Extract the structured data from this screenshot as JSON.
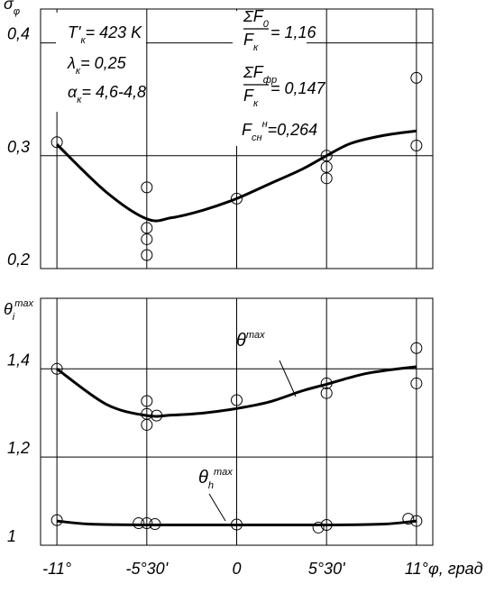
{
  "chart_data": [
    {
      "type": "line",
      "y_label": {
        "parts": [
          {
            "text": "σ"
          },
          {
            "text": "φ",
            "pos": "sub"
          }
        ]
      },
      "xlim": [
        -12,
        12
      ],
      "ylim": [
        0.2,
        0.43
      ],
      "yticks": [
        {
          "value": 0.2,
          "label": "0,2"
        },
        {
          "value": 0.3,
          "label": "0,3"
        },
        {
          "value": 0.4,
          "label": "0,4"
        }
      ],
      "grid": true,
      "series": [
        {
          "style": "line",
          "color": "#000000",
          "x": [
            -11,
            -8,
            -5.5,
            -4,
            -2,
            0,
            2,
            4,
            5.5,
            7,
            9,
            11
          ],
          "values": [
            0.31,
            0.268,
            0.244,
            0.245,
            0.252,
            0.262,
            0.275,
            0.288,
            0.3,
            0.311,
            0.318,
            0.322
          ]
        },
        {
          "style": "markers",
          "color": "#000000",
          "x": [
            -11,
            -5.5,
            -5.5,
            -5.5,
            -5.5,
            0,
            5.5,
            5.5,
            5.5,
            11,
            11
          ],
          "values": [
            0.312,
            0.272,
            0.236,
            0.226,
            0.212,
            0.262,
            0.3,
            0.29,
            0.28,
            0.369,
            0.309
          ]
        }
      ],
      "annotations": [
        {
          "parts": [
            {
              "text": "T'"
            },
            {
              "text": "к",
              "pos": "sub"
            },
            {
              "text": "= 423 K"
            }
          ]
        },
        {
          "parts": [
            {
              "text": "λ"
            },
            {
              "text": "к",
              "pos": "sub"
            },
            {
              "text": "= 0,25"
            }
          ]
        },
        {
          "parts": [
            {
              "text": "α"
            },
            {
              "text": "к",
              "pos": "sub"
            },
            {
              "text": "= 4,6-4,8"
            }
          ]
        },
        {
          "numerator": [
            {
              "text": "ΣF"
            },
            {
              "text": "0",
              "pos": "sub"
            }
          ],
          "denominator": [
            {
              "text": "F"
            },
            {
              "text": "к",
              "pos": "sub"
            }
          ],
          "rest": [
            {
              "text": "= 1,16"
            }
          ]
        },
        {
          "numerator": [
            {
              "text": "ΣF"
            },
            {
              "text": "фр",
              "pos": "sub"
            }
          ],
          "denominator": [
            {
              "text": "F"
            },
            {
              "text": "к",
              "pos": "sub"
            }
          ],
          "rest": [
            {
              "text": "= 0,147"
            }
          ]
        },
        {
          "parts": [
            {
              "text": "F"
            },
            {
              "text": "сн",
              "pos": "sub"
            },
            {
              "text": "н",
              "pos": "sup"
            },
            {
              "text": "=0,264"
            }
          ]
        }
      ]
    },
    {
      "type": "line",
      "y_label": {
        "parts": [
          {
            "text": "θ"
          },
          {
            "text": "i",
            "pos": "sub"
          },
          {
            "text": "max",
            "pos": "sup"
          }
        ]
      },
      "xlim": [
        -12,
        12
      ],
      "ylim": [
        1,
        1.56
      ],
      "xticks": [
        {
          "value": -11,
          "label": "-11°"
        },
        {
          "value": -5.5,
          "label": "-5°30'"
        },
        0,
        {
          "value": 5.5,
          "label": "5°30'"
        },
        {
          "value": 11,
          "label": "11°"
        }
      ],
      "x_label": "φ, град",
      "yticks": [
        1,
        {
          "value": 1.2,
          "label": "1,2"
        },
        {
          "value": 1.4,
          "label": "1,4"
        }
      ],
      "grid": true,
      "series": [
        {
          "style": "line",
          "color": "#000000",
          "label": {
            "parts": [
              {
                "text": "θ"
              },
              {
                "text": "max",
                "pos": "sup"
              }
            ]
          },
          "x": [
            -11,
            -8,
            -5.5,
            -4,
            -2,
            0,
            2,
            4,
            5.5,
            8,
            11
          ],
          "values": [
            1.4,
            1.32,
            1.294,
            1.295,
            1.3,
            1.31,
            1.325,
            1.35,
            1.365,
            1.39,
            1.405
          ]
        },
        {
          "style": "markers",
          "color": "#000000",
          "x": [
            -11,
            -5.5,
            -5.5,
            -5.5,
            -4.9,
            0,
            5.5,
            5.5,
            11,
            11
          ],
          "values": [
            1.4,
            1.327,
            1.298,
            1.273,
            1.294,
            1.329,
            1.367,
            1.345,
            1.447,
            1.367
          ]
        },
        {
          "style": "line",
          "color": "#000000",
          "label": {
            "parts": [
              {
                "text": "θ"
              },
              {
                "text": "h",
                "pos": "sub"
              },
              {
                "text": "max",
                "pos": "sup"
              }
            ]
          },
          "x": [
            -11,
            -9,
            -5.5,
            0,
            5.5,
            9,
            11
          ],
          "values": [
            1.055,
            1.048,
            1.046,
            1.046,
            1.046,
            1.048,
            1.055
          ]
        },
        {
          "style": "markers",
          "color": "#000000",
          "x": [
            -11,
            -6,
            -5.5,
            -5,
            0,
            5,
            5.5,
            10.5,
            11
          ],
          "values": [
            1.057,
            1.05,
            1.05,
            1.048,
            1.047,
            1.04,
            1.046,
            1.06,
            1.055
          ]
        }
      ]
    }
  ]
}
